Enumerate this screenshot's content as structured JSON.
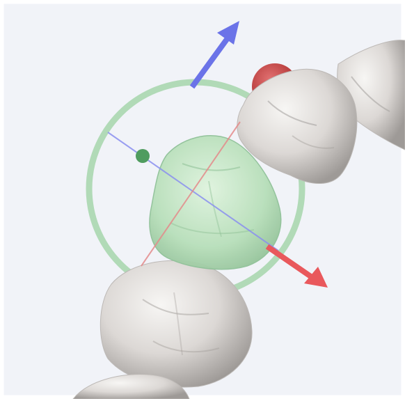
{
  "viewport": {
    "background": "#f1f3f8",
    "frame_color": "#ffffff"
  },
  "gizmo": {
    "ring_color": "#a6d5ab",
    "ring_opacity": 0.85,
    "up_arrow_color": "#6b73e8",
    "right_arrow_color": "#e9585c",
    "axis_line_color": "#8a8ff0",
    "red_axis_line_color": "#e48b8b",
    "rotation_handle_color": "#4f9c5f"
  },
  "teeth": {
    "selected_color": "#bfe5c0",
    "selected_outline": "#8fc198",
    "unselected_color": "#dedad7",
    "unselected_shadow": "#a8a4a1"
  },
  "contact_marker": {
    "color": "#c43b3b",
    "icon": "contact-point-icon"
  },
  "icons": [
    "translate-up-arrow-icon",
    "translate-mesial-arrow-icon",
    "rotation-ring-icon",
    "rotation-handle-icon"
  ]
}
